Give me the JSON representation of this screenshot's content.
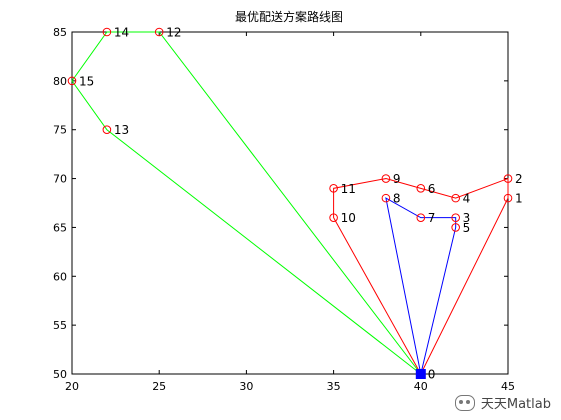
{
  "chart_data": {
    "type": "scatter",
    "title": "最优配送方案路线图",
    "xlim": [
      20,
      45
    ],
    "ylim": [
      50,
      85
    ],
    "xticks": [
      20,
      25,
      30,
      35,
      40,
      45
    ],
    "yticks": [
      50,
      55,
      60,
      65,
      70,
      75,
      80,
      85
    ],
    "grid": false,
    "depot": {
      "label": "0",
      "x": 40,
      "y": 50,
      "color": "#0000ff"
    },
    "points": [
      {
        "label": "1",
        "x": 45,
        "y": 68
      },
      {
        "label": "2",
        "x": 45,
        "y": 70
      },
      {
        "label": "3",
        "x": 42,
        "y": 66
      },
      {
        "label": "4",
        "x": 42,
        "y": 68
      },
      {
        "label": "5",
        "x": 42,
        "y": 65
      },
      {
        "label": "6",
        "x": 40,
        "y": 69
      },
      {
        "label": "7",
        "x": 40,
        "y": 66
      },
      {
        "label": "8",
        "x": 38,
        "y": 68
      },
      {
        "label": "9",
        "x": 38,
        "y": 70
      },
      {
        "label": "10",
        "x": 35,
        "y": 66
      },
      {
        "label": "11",
        "x": 35,
        "y": 69
      },
      {
        "label": "12",
        "x": 25,
        "y": 85
      },
      {
        "label": "13",
        "x": 22,
        "y": 75
      },
      {
        "label": "14",
        "x": 22,
        "y": 85
      },
      {
        "label": "15",
        "x": 20,
        "y": 80
      }
    ],
    "routes": [
      {
        "color": "#ff0000",
        "path": [
          "0",
          "1",
          "2",
          "4",
          "6",
          "9",
          "11",
          "10",
          "0"
        ]
      },
      {
        "color": "#0000ff",
        "path": [
          "0",
          "8",
          "7",
          "3",
          "5",
          "0"
        ]
      },
      {
        "color": "#00ff00",
        "path": [
          "0",
          "12",
          "14",
          "15",
          "13",
          "0"
        ]
      }
    ],
    "marker_color": "#ff0000"
  },
  "watermark": {
    "text": "天天Matlab"
  }
}
